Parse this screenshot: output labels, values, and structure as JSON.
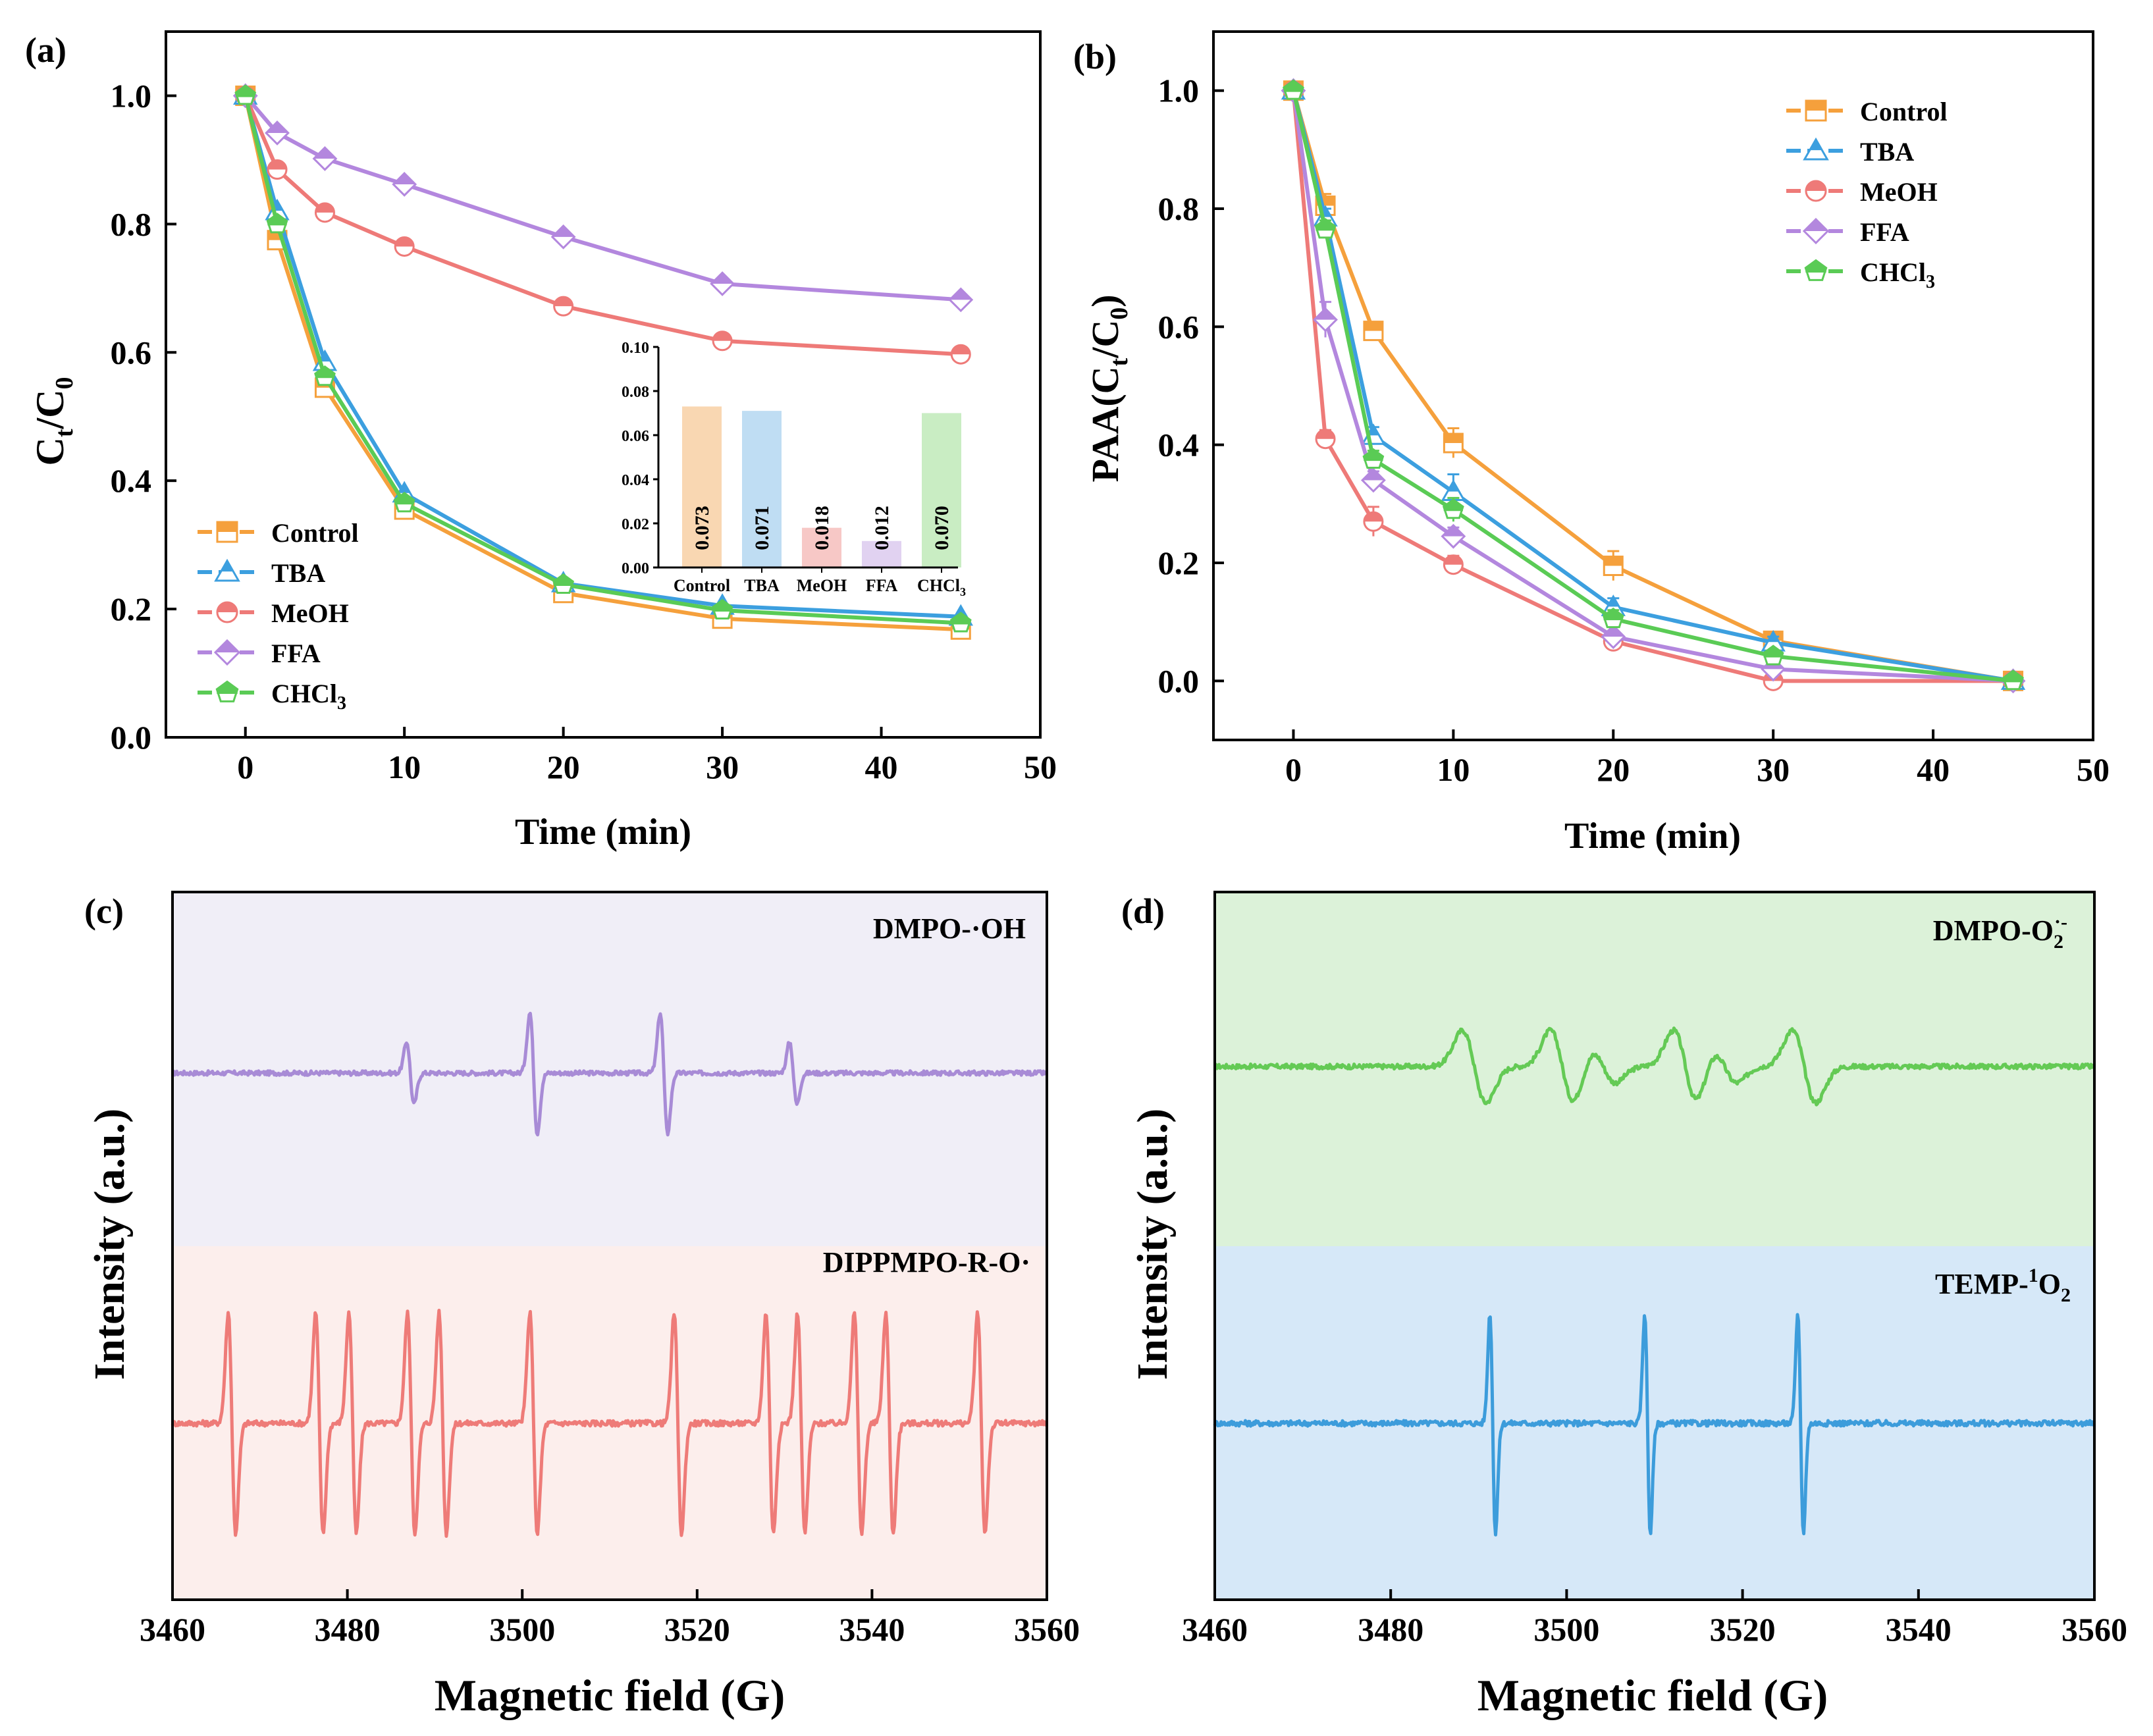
{
  "figure": {
    "panel_labels": [
      "(a)",
      "(b)",
      "(c)",
      "(d)"
    ]
  },
  "chart_data": [
    {
      "id": "a",
      "type": "line",
      "panel_label": "(a)",
      "xlabel": "Time (min)",
      "ylabel_main": "C",
      "ylabel_sub1": "t",
      "ylabel_mid": "/C",
      "ylabel_sub2": "0",
      "xlim": [
        -5,
        50
      ],
      "ylim": [
        0,
        1.1
      ],
      "xticks": [
        0,
        10,
        20,
        30,
        40,
        50
      ],
      "yticks": [
        0.0,
        0.2,
        0.4,
        0.6,
        0.8,
        1.0
      ],
      "xtick_labels": [
        "0",
        "10",
        "20",
        "30",
        "40",
        "50"
      ],
      "ytick_labels": [
        "0.0",
        "0.2",
        "0.4",
        "0.6",
        "0.8",
        "1.0"
      ],
      "legend_position": "bottom-left",
      "x": [
        0,
        2,
        5,
        10,
        20,
        30,
        45
      ],
      "series": [
        {
          "name": "Control",
          "label_main": "Control",
          "label_sub": "",
          "color": "#F5A03C",
          "marker": "square",
          "values": [
            1.0,
            0.775,
            0.545,
            0.355,
            0.225,
            0.185,
            0.168
          ]
        },
        {
          "name": "TBA",
          "label_main": "TBA",
          "label_sub": "",
          "color": "#3C9FDF",
          "marker": "triangle",
          "values": [
            1.0,
            0.82,
            0.585,
            0.38,
            0.24,
            0.205,
            0.188
          ]
        },
        {
          "name": "MeOH",
          "label_main": "MeOH",
          "label_sub": "",
          "color": "#EE7A78",
          "marker": "circle",
          "values": [
            1.0,
            0.885,
            0.818,
            0.765,
            0.672,
            0.618,
            0.597
          ]
        },
        {
          "name": "FFA",
          "label_main": "FFA",
          "label_sub": "",
          "color": "#B387DE",
          "marker": "diamond",
          "values": [
            1.0,
            0.942,
            0.902,
            0.862,
            0.78,
            0.707,
            0.682
          ]
        },
        {
          "name": "CHCl3",
          "label_main": "CHCl",
          "label_sub": "3",
          "color": "#5ACB55",
          "marker": "pentagon",
          "values": [
            1.0,
            0.8,
            0.562,
            0.365,
            0.238,
            0.198,
            0.178
          ]
        }
      ],
      "inset": {
        "type": "bar",
        "categories": [
          "Control",
          "TBA",
          "MeOH",
          "FFA",
          "CHCl3"
        ],
        "category_labels": [
          {
            "main": "Control",
            "sub": ""
          },
          {
            "main": "TBA",
            "sub": ""
          },
          {
            "main": "MeOH",
            "sub": ""
          },
          {
            "main": "FFA",
            "sub": ""
          },
          {
            "main": "CHCl",
            "sub": "3"
          }
        ],
        "values": [
          0.073,
          0.071,
          0.018,
          0.012,
          0.07
        ],
        "value_labels": [
          "0.073",
          "0.071",
          "0.018",
          "0.012",
          "0.070"
        ],
        "colors": [
          "#F9D7B2",
          "#BFDDF3",
          "#F7C8C6",
          "#E1D2F1",
          "#C9EDC3"
        ],
        "ylim": [
          0,
          0.1
        ],
        "yticks": [
          0.0,
          0.02,
          0.04,
          0.06,
          0.08,
          0.1
        ],
        "ytick_labels": [
          "0.00",
          "0.02",
          "0.04",
          "0.06",
          "0.08",
          "0.10"
        ]
      }
    },
    {
      "id": "b",
      "type": "line",
      "panel_label": "(b)",
      "xlabel": "Time (min)",
      "ylabel_main": "PAA(C",
      "ylabel_sub1": "t",
      "ylabel_mid": "/C",
      "ylabel_sub2": "0",
      "ylabel_end": ")",
      "xlim": [
        -5,
        50
      ],
      "ylim": [
        -0.1,
        1.1
      ],
      "xticks": [
        0,
        10,
        20,
        30,
        40,
        50
      ],
      "yticks": [
        0.0,
        0.2,
        0.4,
        0.6,
        0.8,
        1.0
      ],
      "xtick_labels": [
        "0",
        "10",
        "20",
        "30",
        "40",
        "50"
      ],
      "ytick_labels": [
        "0.0",
        "0.2",
        "0.4",
        "0.6",
        "0.8",
        "1.0"
      ],
      "legend_position": "top-right",
      "x": [
        0,
        2,
        5,
        10,
        20,
        30,
        45
      ],
      "series": [
        {
          "name": "Control",
          "label_main": "Control",
          "label_sub": "",
          "color": "#F5A03C",
          "marker": "square",
          "values": [
            1.0,
            0.805,
            0.593,
            0.403,
            0.195,
            0.068,
            0.0
          ],
          "err": [
            0,
            0.02,
            0.01,
            0.025,
            0.025,
            0.01,
            0.01
          ]
        },
        {
          "name": "TBA",
          "label_main": "TBA",
          "label_sub": "",
          "color": "#3C9FDF",
          "marker": "triangle",
          "values": [
            1.0,
            0.785,
            0.415,
            0.32,
            0.125,
            0.065,
            0.0
          ],
          "err": [
            0,
            0.015,
            0.015,
            0.03,
            0.015,
            0.01,
            0.01
          ]
        },
        {
          "name": "MeOH",
          "label_main": "MeOH",
          "label_sub": "",
          "color": "#EE7A78",
          "marker": "circle",
          "values": [
            1.0,
            0.41,
            0.27,
            0.197,
            0.067,
            0.0,
            0.0
          ],
          "err": [
            0,
            0.015,
            0.025,
            0.015,
            0.01,
            0.01,
            0.01
          ]
        },
        {
          "name": "FFA",
          "label_main": "FFA",
          "label_sub": "",
          "color": "#B387DE",
          "marker": "diamond",
          "values": [
            1.0,
            0.612,
            0.34,
            0.245,
            0.075,
            0.02,
            0.0
          ],
          "err": [
            0,
            0.03,
            0.015,
            0.015,
            0.01,
            0.01,
            0.01
          ]
        },
        {
          "name": "CHCl3",
          "label_main": "CHCl",
          "label_sub": "3",
          "color": "#5ACB55",
          "marker": "pentagon",
          "values": [
            1.0,
            0.765,
            0.375,
            0.29,
            0.105,
            0.042,
            0.0
          ],
          "err": [
            0,
            0.015,
            0.015,
            0.02,
            0.015,
            0.01,
            0.01
          ]
        }
      ]
    },
    {
      "id": "c",
      "type": "line",
      "panel_label": "(c)",
      "xlabel": "Magnetic field (G)",
      "ylabel": "Intensity (a.u.)",
      "xlim": [
        3460,
        3560
      ],
      "xticks": [
        3460,
        3480,
        3500,
        3520,
        3540,
        3560
      ],
      "xtick_labels": [
        "3460",
        "3480",
        "3500",
        "3520",
        "3540",
        "3560"
      ],
      "series": [
        {
          "name": "DMPO-·OH",
          "label": "DMPO-·OH",
          "color": "#A88BD6",
          "band_color": "#F0EEF7",
          "peaks": [
            [
              3487.2,
              0.32
            ],
            [
              3501.3,
              0.62
            ],
            [
              3516.2,
              0.62
            ],
            [
              3531.0,
              0.32
            ]
          ]
        },
        {
          "name": "DIPPMPO-R-O·",
          "label": "DIPPMPO-R-O·",
          "color": "#EE7B78",
          "band_color": "#FCEEEC",
          "peaks": [
            [
              3466.8,
              1
            ],
            [
              3476.8,
              1
            ],
            [
              3480.6,
              1
            ],
            [
              3487.3,
              1
            ],
            [
              3490.9,
              1
            ],
            [
              3501.3,
              1
            ],
            [
              3517.8,
              1
            ],
            [
              3528.3,
              1
            ],
            [
              3531.9,
              1
            ],
            [
              3538.4,
              1
            ],
            [
              3542.0,
              1
            ],
            [
              3552.5,
              1
            ]
          ]
        }
      ]
    },
    {
      "id": "d",
      "type": "line",
      "panel_label": "(d)",
      "xlabel": "Magnetic field (G)",
      "ylabel": "Intensity (a.u.)",
      "xlim": [
        3460,
        3560
      ],
      "xticks": [
        3460,
        3480,
        3500,
        3520,
        3540,
        3560
      ],
      "xtick_labels": [
        "3460",
        "3480",
        "3500",
        "3520",
        "3540",
        "3560"
      ],
      "series": [
        {
          "name": "DMPO-O2·-",
          "label_main": "DMPO-O",
          "label_sub": "2",
          "label_sup": "·-",
          "color": "#64CA55",
          "band_color": "#DCF2D9"
        },
        {
          "name": "TEMP-1O2",
          "label_pre": "TEMP-",
          "label_sup": "1",
          "label_main": "O",
          "label_sub": "2",
          "color": "#3C9CDB",
          "band_color": "#D6E8F8",
          "peaks": [
            [
              3491.6,
              1
            ],
            [
              3509.2,
              1
            ],
            [
              3526.6,
              1
            ]
          ]
        }
      ]
    }
  ]
}
